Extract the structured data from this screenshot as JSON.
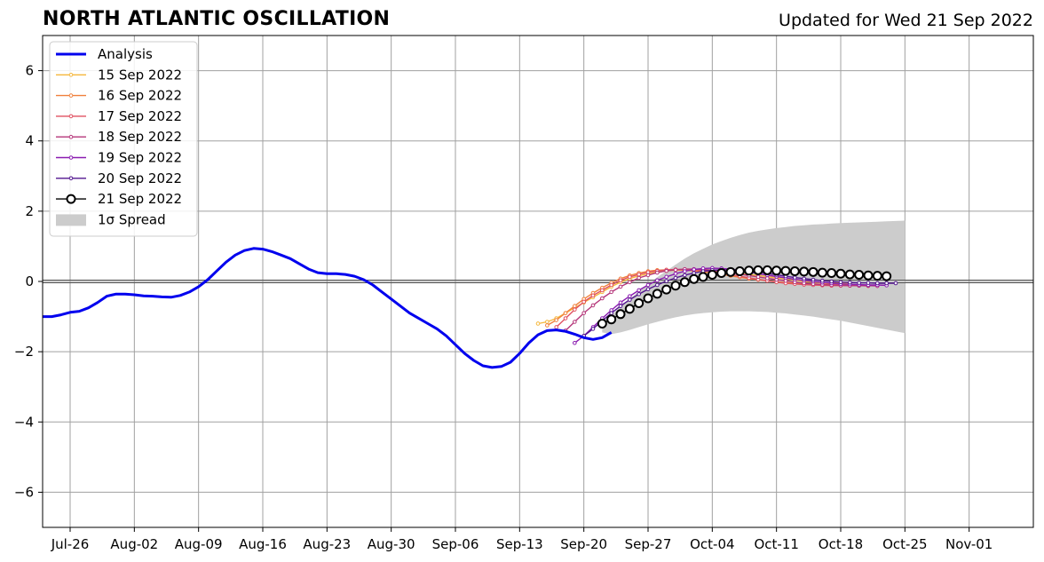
{
  "header": {
    "title": "NORTH ATLANTIC OSCILLATION",
    "subtitle": "Updated for Wed 21 Sep 2022"
  },
  "chart_data": {
    "type": "line",
    "title": "NORTH ATLANTIC OSCILLATION",
    "subtitle": "Updated for Wed 21 Sep 2022",
    "xlabel": "",
    "ylabel": "",
    "x_axis": {
      "type": "date",
      "range": [
        "2022-07-23",
        "2022-11-08"
      ],
      "ticks": [
        "Jul-26",
        "Aug-02",
        "Aug-09",
        "Aug-16",
        "Aug-23",
        "Aug-30",
        "Sep-06",
        "Sep-13",
        "Sep-20",
        "Sep-27",
        "Oct-04",
        "Oct-11",
        "Oct-18",
        "Oct-25",
        "Nov-01"
      ],
      "tick_dates": [
        "2022-07-26",
        "2022-08-02",
        "2022-08-09",
        "2022-08-16",
        "2022-08-23",
        "2022-08-30",
        "2022-09-06",
        "2022-09-13",
        "2022-09-20",
        "2022-09-27",
        "2022-10-04",
        "2022-10-11",
        "2022-10-18",
        "2022-10-25",
        "2022-11-01"
      ]
    },
    "y_axis": {
      "range": [
        -7,
        7
      ],
      "ticks": [
        -6,
        -4,
        -2,
        0,
        2,
        4,
        6
      ],
      "tick_labels": [
        "−6",
        "−4",
        "−2",
        "0",
        "2",
        "4",
        "6"
      ]
    },
    "grid": true,
    "legend_position": "top-left",
    "legend": [
      "Analysis",
      "15 Sep 2022",
      "16 Sep 2022",
      "17 Sep 2022",
      "18 Sep 2022",
      "19 Sep 2022",
      "20 Sep 2022",
      "21 Sep 2022",
      "1σ Spread"
    ],
    "series": [
      {
        "name": "Analysis",
        "color": "#0000ee",
        "style": "line",
        "start_date": "2022-07-23",
        "values": [
          -1.0,
          -1.0,
          -0.95,
          -0.88,
          -0.85,
          -0.75,
          -0.6,
          -0.42,
          -0.36,
          -0.36,
          -0.38,
          -0.41,
          -0.42,
          -0.44,
          -0.45,
          -0.4,
          -0.3,
          -0.15,
          0.05,
          0.3,
          0.55,
          0.75,
          0.88,
          0.94,
          0.92,
          0.85,
          0.75,
          0.65,
          0.5,
          0.35,
          0.25,
          0.22,
          0.22,
          0.2,
          0.15,
          0.05,
          -0.1,
          -0.3,
          -0.5,
          -0.7,
          -0.9,
          -1.05,
          -1.2,
          -1.35,
          -1.55,
          -1.8,
          -2.05,
          -2.25,
          -2.4,
          -2.45,
          -2.42,
          -2.3,
          -2.05,
          -1.75,
          -1.52,
          -1.4,
          -1.38,
          -1.42,
          -1.5,
          -1.6,
          -1.65,
          -1.6,
          -1.45
        ]
      },
      {
        "name": "15 Sep 2022",
        "color": "#f5b73c",
        "style": "line-small-markers",
        "start_date": "2022-09-15",
        "values": [
          -1.2,
          -1.15,
          -1.05,
          -0.9,
          -0.75,
          -0.6,
          -0.45,
          -0.3,
          -0.15,
          -0.02,
          0.08,
          0.16,
          0.22,
          0.27,
          0.3,
          0.32,
          0.33,
          0.33,
          0.32,
          0.3,
          0.28,
          0.25,
          0.22,
          0.2,
          0.17,
          0.14,
          0.1,
          0.07,
          0.04,
          0.0,
          -0.02,
          -0.04,
          -0.05,
          -0.05,
          -0.05
        ]
      },
      {
        "name": "16 Sep 2022",
        "color": "#f0803c",
        "style": "line-small-markers",
        "start_date": "2022-09-16",
        "values": [
          -1.25,
          -1.1,
          -0.9,
          -0.7,
          -0.5,
          -0.33,
          -0.18,
          -0.04,
          0.08,
          0.17,
          0.24,
          0.29,
          0.32,
          0.33,
          0.33,
          0.32,
          0.3,
          0.27,
          0.24,
          0.2,
          0.16,
          0.12,
          0.08,
          0.05,
          0.02,
          -0.01,
          -0.03,
          -0.05,
          -0.06,
          -0.07,
          -0.08,
          -0.08,
          -0.09,
          -0.1,
          -0.1
        ]
      },
      {
        "name": "17 Sep 2022",
        "color": "#e05060",
        "style": "line-small-markers",
        "start_date": "2022-09-17",
        "values": [
          -1.3,
          -1.05,
          -0.8,
          -0.58,
          -0.4,
          -0.25,
          -0.1,
          0.03,
          0.13,
          0.2,
          0.26,
          0.3,
          0.33,
          0.34,
          0.34,
          0.33,
          0.31,
          0.28,
          0.24,
          0.2,
          0.15,
          0.1,
          0.06,
          0.02,
          -0.02,
          -0.05,
          -0.07,
          -0.09,
          -0.1,
          -0.11,
          -0.12,
          -0.12,
          -0.12,
          -0.12,
          -0.13
        ]
      },
      {
        "name": "18 Sep 2022",
        "color": "#b5367a",
        "style": "line-small-markers",
        "start_date": "2022-09-18",
        "values": [
          -1.4,
          -1.15,
          -0.9,
          -0.68,
          -0.48,
          -0.3,
          -0.15,
          -0.02,
          0.1,
          0.18,
          0.25,
          0.3,
          0.33,
          0.35,
          0.35,
          0.34,
          0.32,
          0.29,
          0.25,
          0.21,
          0.17,
          0.13,
          0.09,
          0.05,
          0.02,
          -0.02,
          -0.05,
          -0.07,
          -0.09,
          -0.1,
          -0.11,
          -0.12,
          -0.12,
          -0.12,
          -0.13
        ]
      },
      {
        "name": "19 Sep 2022",
        "color": "#8a1bb0",
        "style": "line-small-markers",
        "start_date": "2022-09-19",
        "values": [
          -1.75,
          -1.55,
          -1.3,
          -1.05,
          -0.82,
          -0.6,
          -0.42,
          -0.25,
          -0.1,
          0.03,
          0.13,
          0.22,
          0.29,
          0.34,
          0.37,
          0.38,
          0.37,
          0.35,
          0.31,
          0.27,
          0.22,
          0.18,
          0.14,
          0.1,
          0.06,
          0.03,
          0.0,
          -0.03,
          -0.05,
          -0.07,
          -0.08,
          -0.09,
          -0.1,
          -0.1,
          -0.11
        ]
      },
      {
        "name": "20 Sep 2022",
        "color": "#52158f",
        "style": "line-small-markers",
        "start_date": "2022-09-20",
        "values": [
          -1.55,
          -1.35,
          -1.12,
          -0.9,
          -0.7,
          -0.52,
          -0.36,
          -0.22,
          -0.1,
          0.01,
          0.1,
          0.18,
          0.24,
          0.29,
          0.32,
          0.33,
          0.33,
          0.32,
          0.3,
          0.27,
          0.23,
          0.19,
          0.15,
          0.11,
          0.08,
          0.05,
          0.02,
          0.0,
          -0.02,
          -0.03,
          -0.04,
          -0.04,
          -0.05,
          -0.05,
          -0.05
        ]
      },
      {
        "name": "21 Sep 2022",
        "color": "#000000",
        "style": "line-open-circles",
        "start_date": "2022-09-22",
        "values": [
          -1.2,
          -1.08,
          -0.93,
          -0.78,
          -0.62,
          -0.48,
          -0.35,
          -0.23,
          -0.12,
          -0.02,
          0.07,
          0.13,
          0.19,
          0.24,
          0.27,
          0.29,
          0.31,
          0.32,
          0.32,
          0.31,
          0.3,
          0.29,
          0.28,
          0.27,
          0.25,
          0.24,
          0.22,
          0.2,
          0.19,
          0.17,
          0.16,
          0.15
        ]
      }
    ],
    "spread": {
      "name": "1σ Spread",
      "color": "#cccccc",
      "start_date": "2022-09-22",
      "lower": [
        -1.45,
        -1.5,
        -1.45,
        -1.38,
        -1.3,
        -1.22,
        -1.15,
        -1.08,
        -1.02,
        -0.97,
        -0.93,
        -0.9,
        -0.88,
        -0.86,
        -0.85,
        -0.85,
        -0.85,
        -0.86,
        -0.87,
        -0.89,
        -0.91,
        -0.94,
        -0.97,
        -1.0,
        -1.04,
        -1.08,
        -1.12,
        -1.17,
        -1.22,
        -1.27,
        -1.32,
        -1.37,
        -1.42,
        -1.47
      ],
      "upper": [
        -1.15,
        -0.95,
        -0.72,
        -0.5,
        -0.28,
        -0.08,
        0.12,
        0.3,
        0.48,
        0.65,
        0.8,
        0.93,
        1.05,
        1.15,
        1.24,
        1.32,
        1.39,
        1.44,
        1.48,
        1.52,
        1.55,
        1.58,
        1.6,
        1.62,
        1.63,
        1.65,
        1.66,
        1.67,
        1.68,
        1.69,
        1.7,
        1.71,
        1.72,
        1.73
      ]
    },
    "reference_line": 0
  }
}
